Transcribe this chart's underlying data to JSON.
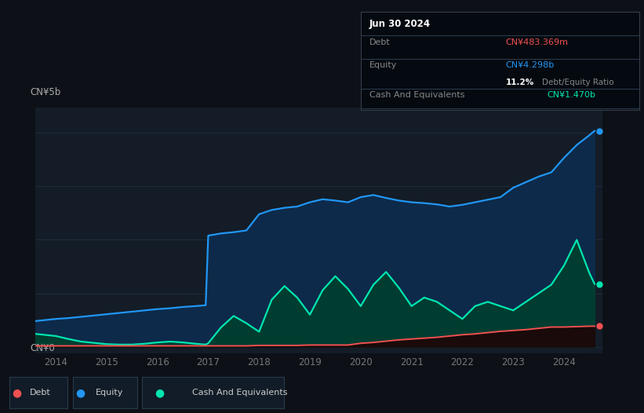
{
  "background_color": "#0d1117",
  "plot_bg_color": "#131c27",
  "ylabel_top": "CN¥5b",
  "ylabel_bottom": "CN¥0",
  "xlim": [
    2013.6,
    2024.75
  ],
  "ylim": [
    -0.15,
    5.6
  ],
  "xticks": [
    2014,
    2015,
    2016,
    2017,
    2018,
    2019,
    2020,
    2021,
    2022,
    2023,
    2024
  ],
  "grid_color": "#1e2d3d",
  "equity_color": "#2196f3",
  "equity_fill": "#0d2a4a",
  "debt_color": "#f05050",
  "debt_fill": "#1a0a0a",
  "cash_color": "#00e5b0",
  "cash_fill": "#003d30",
  "legend_bg": "#111c28",
  "legend_border": "#2a3a4a",
  "tooltip_bg": "#050a10",
  "tooltip_border": "#2a3a4a",
  "years": [
    2013.6,
    2014.0,
    2014.25,
    2014.5,
    2014.75,
    2015.0,
    2015.25,
    2015.5,
    2015.75,
    2016.0,
    2016.25,
    2016.5,
    2016.75,
    2016.95,
    2017.0,
    2017.25,
    2017.5,
    2017.75,
    2018.0,
    2018.25,
    2018.5,
    2018.75,
    2019.0,
    2019.25,
    2019.5,
    2019.75,
    2020.0,
    2020.25,
    2020.5,
    2020.75,
    2021.0,
    2021.25,
    2021.5,
    2021.75,
    2022.0,
    2022.25,
    2022.5,
    2022.75,
    2023.0,
    2023.25,
    2023.5,
    2023.75,
    2024.0,
    2024.25,
    2024.5,
    2024.6
  ],
  "equity": [
    0.6,
    0.65,
    0.67,
    0.7,
    0.73,
    0.76,
    0.79,
    0.82,
    0.85,
    0.88,
    0.9,
    0.93,
    0.95,
    0.97,
    2.6,
    2.65,
    2.68,
    2.72,
    3.1,
    3.2,
    3.25,
    3.28,
    3.38,
    3.45,
    3.42,
    3.38,
    3.5,
    3.55,
    3.48,
    3.42,
    3.38,
    3.36,
    3.33,
    3.28,
    3.32,
    3.38,
    3.44,
    3.5,
    3.72,
    3.85,
    3.98,
    4.08,
    4.42,
    4.72,
    4.95,
    5.05
  ],
  "debt": [
    0.02,
    0.02,
    0.02,
    0.02,
    0.02,
    0.02,
    0.02,
    0.02,
    0.02,
    0.02,
    0.02,
    0.02,
    0.02,
    0.02,
    0.02,
    0.02,
    0.02,
    0.02,
    0.03,
    0.03,
    0.03,
    0.03,
    0.04,
    0.04,
    0.04,
    0.04,
    0.08,
    0.1,
    0.13,
    0.16,
    0.18,
    0.2,
    0.22,
    0.25,
    0.28,
    0.3,
    0.33,
    0.36,
    0.38,
    0.4,
    0.43,
    0.46,
    0.46,
    0.47,
    0.48,
    0.48
  ],
  "cash": [
    0.3,
    0.25,
    0.18,
    0.12,
    0.09,
    0.06,
    0.05,
    0.05,
    0.07,
    0.1,
    0.12,
    0.1,
    0.07,
    0.05,
    0.08,
    0.45,
    0.72,
    0.55,
    0.35,
    1.1,
    1.42,
    1.15,
    0.75,
    1.32,
    1.65,
    1.35,
    0.95,
    1.45,
    1.75,
    1.38,
    0.95,
    1.15,
    1.05,
    0.85,
    0.65,
    0.95,
    1.05,
    0.95,
    0.85,
    1.05,
    1.25,
    1.45,
    1.9,
    2.5,
    1.72,
    1.47
  ]
}
